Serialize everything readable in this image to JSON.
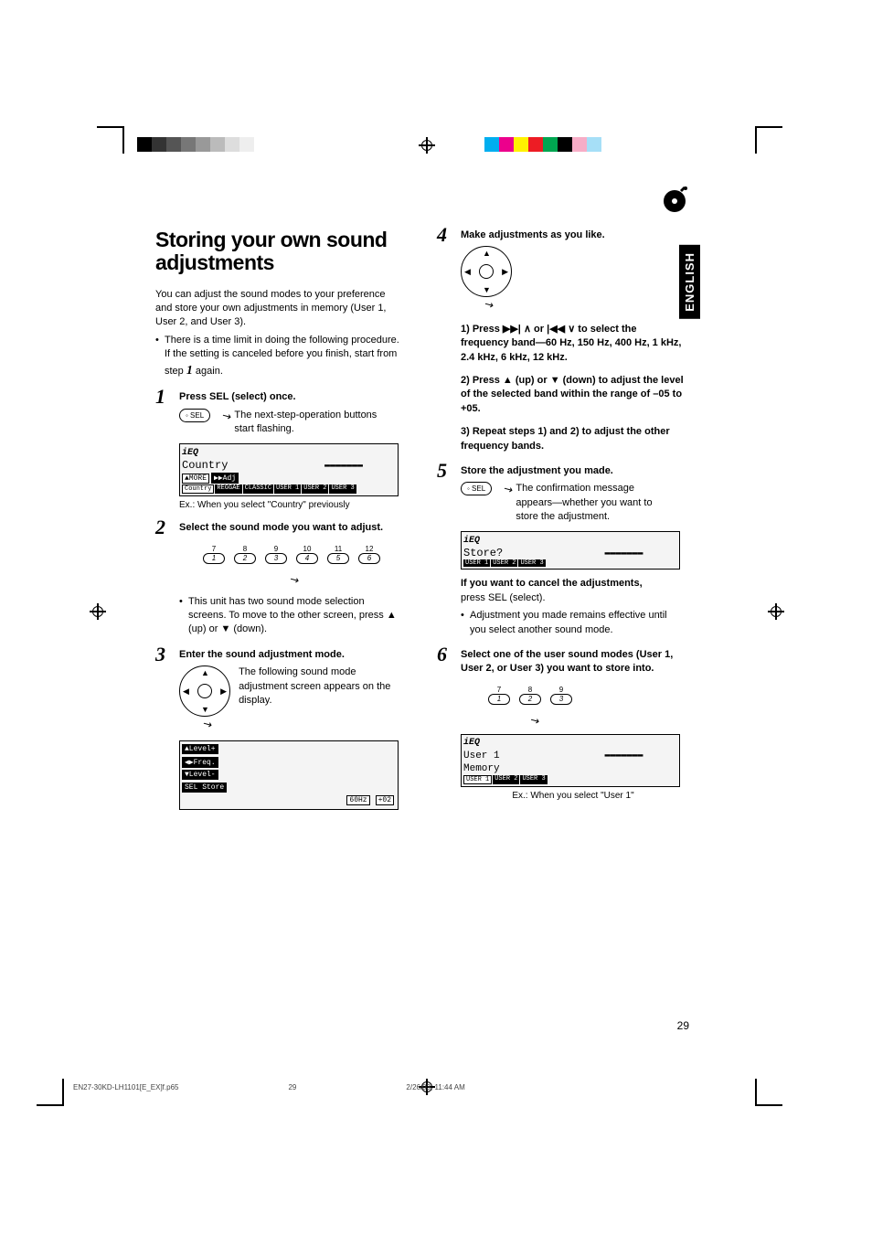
{
  "color_bars": {
    "left": [
      "#000000",
      "#333333",
      "#555555",
      "#777777",
      "#999999",
      "#bbbbbb",
      "#dddddd",
      "#eeeeee",
      "#ffffff"
    ],
    "right": [
      "#00aeef",
      "#ec008c",
      "#fff200",
      "#ed1c24",
      "#00a651",
      "#000000",
      "#f7adc7",
      "#a6dff7",
      "#fff"
    ],
    "swatch_width": 16
  },
  "language_tab": "ENGLISH",
  "heading": "Storing your own sound adjustments",
  "intro": "You can adjust the sound modes to your preference and store your own adjustments in memory (User 1, User 2, and User 3).",
  "intro_bullet": "There is a time limit in doing the following procedure. If the setting is canceled before you finish, start from step ",
  "intro_bullet_tail": " again.",
  "steps": {
    "s1": {
      "num": "1",
      "title": "Press SEL (select) once.",
      "body": "The next-step-operation buttons start flashing."
    },
    "s2": {
      "num": "2",
      "title": "Select the sound mode you want to adjust.",
      "bullet": "This unit has two sound mode selection screens. To move to the other screen, press ▲ (up) or ▼ (down)."
    },
    "s3": {
      "num": "3",
      "title": "Enter the sound adjustment mode.",
      "body": "The following sound mode adjustment screen appears on the display."
    },
    "s4": {
      "num": "4",
      "title": "Make adjustments as you like.",
      "sub1_a": "Press ",
      "sub1_b": " to select the frequency band—60 Hz, 150 Hz, 400 Hz, 1 kHz, 2.4 kHz, 6 kHz, 12 kHz.",
      "sub2": "Press ▲ (up) or ▼ (down) to adjust the level of the selected band within the range of –05 to +05.",
      "sub3": "Repeat steps 1) and 2) to adjust the other frequency bands."
    },
    "s5": {
      "num": "5",
      "title": "Store the adjustment you made.",
      "body": "The confirmation message appears—whether you want to store the adjustment.",
      "cancel_bold": "If you want to cancel the adjustments,",
      "cancel_rest": "press SEL (select).",
      "cancel_bullet": "Adjustment you made remains effective until you select another sound mode."
    },
    "s6": {
      "num": "6",
      "title": "Select one of the user sound modes (User 1, User 2, or User 3) you want to store into."
    }
  },
  "display1": {
    "badge": "iEQ",
    "text": "Country",
    "more_label": "▲MORE",
    "adj_label": "▶▶Adj",
    "tabs": [
      "Country",
      "REGGAE",
      "CLASSIC",
      "USER 1",
      "USER 2",
      "USER 3"
    ],
    "caption": "Ex.: When you select \"Country\" previously"
  },
  "display3": {
    "rows": [
      "▲Level+",
      "◀▶Freq.",
      "▼Level-",
      "SEL Store"
    ],
    "freq": "60Hz",
    "val": "+02"
  },
  "display5": {
    "badge": "iEQ",
    "text": "Store?",
    "tabs": [
      "USER 1",
      "USER 2",
      "USER 3"
    ]
  },
  "display6": {
    "badge": "iEQ",
    "line1": "User 1",
    "line2": "Memory",
    "tabs": [
      "USER 1",
      "USER 2",
      "USER 3"
    ],
    "caption": "Ex.:  When you select \"User 1\""
  },
  "buttons6": {
    "top": [
      "7",
      "8",
      "9",
      "10",
      "11",
      "12"
    ],
    "bottom": [
      "1",
      "2",
      "3",
      "4",
      "5",
      "6"
    ]
  },
  "buttons3": {
    "top": [
      "7",
      "8",
      "9"
    ],
    "bottom": [
      "1",
      "2",
      "3"
    ]
  },
  "sel_label": "◦ SEL",
  "symbols": {
    "ffwd": "▶▶|",
    "rew": "|◀◀",
    "up": "∧",
    "down": "∨"
  },
  "page_number": "29",
  "footer": {
    "file": "EN27-30KD-LH1101[E_EX]f.p65",
    "page": "29",
    "datetime": "2/26/03, 11:44 AM"
  }
}
